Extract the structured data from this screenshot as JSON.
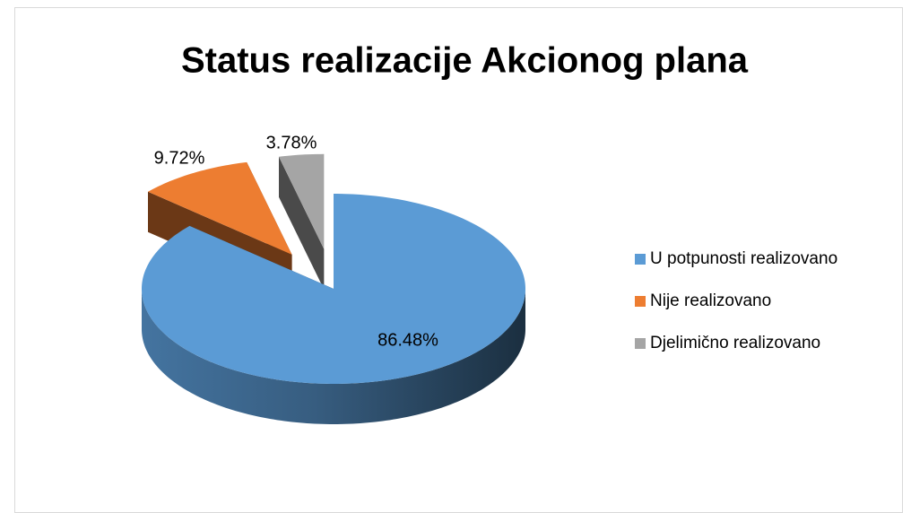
{
  "chart_data": {
    "type": "pie3d",
    "title": "Status realizacije Akcionog plana",
    "categories": [
      "U potpunosti realizovano",
      "Nije realizovano",
      "Djelimično realizovano"
    ],
    "values": [
      86.48,
      9.72,
      3.78
    ],
    "value_labels": [
      "86.48%",
      "9.72%",
      "3.78%"
    ],
    "colors": [
      "#5b9bd5",
      "#ed7d31",
      "#a5a5a5"
    ],
    "legend": "right"
  }
}
